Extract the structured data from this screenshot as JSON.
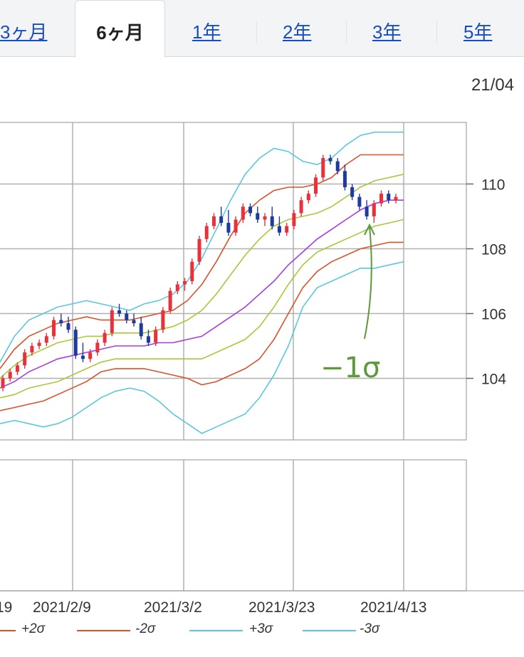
{
  "tabs": [
    {
      "label": "3ヶ月",
      "active": false
    },
    {
      "label": "6ヶ月",
      "active": true
    },
    {
      "label": "1年",
      "active": false
    },
    {
      "label": "2年",
      "active": false
    },
    {
      "label": "3年",
      "active": false
    },
    {
      "label": "5年",
      "active": false
    }
  ],
  "date_label": "21/04",
  "annotation": "−1σ",
  "legend": [
    {
      "label": "+2σ",
      "color": "#d9522b"
    },
    {
      "label": "-2σ",
      "color": "#d9522b"
    },
    {
      "label": "+3σ",
      "color": "#5bc8dc"
    },
    {
      "label": "-3σ",
      "color": "#5bc8dc"
    }
  ],
  "colors": {
    "up": "#e8313b",
    "down": "#1f3a9e",
    "ma": "#a33ee0",
    "sigma1": "#a8c83a",
    "sigma2": "#d9522b",
    "sigma3": "#5bc8dc",
    "annotation": "#5c9a3a"
  },
  "chart_data": {
    "type": "candlestick",
    "x_tick_labels": [
      "19",
      "2021/2/9",
      "2021/3/2",
      "2021/3/23",
      "2021/4/13"
    ],
    "y_tick_labels": [
      "110",
      "108",
      "106",
      "104"
    ],
    "ylim": [
      102.1,
      111.9
    ],
    "candles": [
      [
        103.7,
        104.1,
        103.6,
        104.0
      ],
      [
        104.0,
        104.3,
        103.9,
        104.2
      ],
      [
        104.2,
        104.5,
        104.1,
        104.4
      ],
      [
        104.4,
        104.9,
        104.3,
        104.8
      ],
      [
        104.8,
        105.1,
        104.7,
        105.0
      ],
      [
        105.0,
        105.2,
        104.9,
        105.1
      ],
      [
        105.1,
        105.4,
        105.0,
        105.3
      ],
      [
        105.3,
        105.9,
        105.2,
        105.8
      ],
      [
        105.8,
        106.0,
        105.6,
        105.7
      ],
      [
        105.7,
        105.9,
        105.4,
        105.5
      ],
      [
        105.5,
        105.6,
        104.6,
        104.7
      ],
      [
        104.7,
        105.1,
        104.5,
        104.6
      ],
      [
        104.6,
        104.9,
        104.5,
        104.8
      ],
      [
        104.8,
        105.2,
        104.7,
        105.1
      ],
      [
        105.1,
        105.5,
        105.0,
        105.4
      ],
      [
        105.4,
        106.2,
        105.3,
        106.1
      ],
      [
        106.1,
        106.3,
        105.9,
        106.0
      ],
      [
        106.0,
        106.1,
        105.7,
        105.8
      ],
      [
        105.8,
        106.0,
        105.6,
        105.7
      ],
      [
        105.7,
        105.9,
        105.2,
        105.3
      ],
      [
        105.3,
        105.5,
        105.0,
        105.1
      ],
      [
        105.1,
        105.6,
        105.0,
        105.5
      ],
      [
        105.5,
        106.2,
        105.4,
        106.1
      ],
      [
        106.1,
        106.8,
        106.0,
        106.7
      ],
      [
        106.7,
        107.0,
        106.6,
        106.9
      ],
      [
        106.9,
        107.1,
        106.7,
        107.0
      ],
      [
        107.0,
        107.7,
        106.9,
        107.6
      ],
      [
        107.6,
        108.4,
        107.5,
        108.3
      ],
      [
        108.3,
        108.8,
        108.2,
        108.7
      ],
      [
        108.7,
        109.1,
        108.6,
        109.0
      ],
      [
        109.0,
        109.3,
        108.7,
        108.8
      ],
      [
        108.8,
        109.2,
        108.4,
        108.5
      ],
      [
        108.5,
        109.0,
        108.4,
        108.9
      ],
      [
        108.9,
        109.4,
        108.8,
        109.3
      ],
      [
        109.3,
        109.4,
        109.0,
        109.1
      ],
      [
        109.1,
        109.3,
        108.8,
        108.9
      ],
      [
        108.9,
        109.1,
        108.7,
        109.0
      ],
      [
        109.0,
        109.3,
        108.6,
        108.7
      ],
      [
        108.7,
        109.0,
        108.4,
        108.5
      ],
      [
        108.5,
        108.8,
        108.4,
        108.7
      ],
      [
        108.7,
        109.2,
        108.6,
        109.1
      ],
      [
        109.1,
        109.6,
        109.0,
        109.5
      ],
      [
        109.5,
        109.8,
        109.4,
        109.7
      ],
      [
        109.7,
        110.3,
        109.6,
        110.2
      ],
      [
        110.2,
        110.9,
        110.1,
        110.8
      ],
      [
        110.8,
        110.9,
        110.6,
        110.7
      ],
      [
        110.7,
        110.8,
        110.3,
        110.4
      ],
      [
        110.4,
        110.6,
        109.8,
        109.9
      ],
      [
        109.9,
        110.0,
        109.5,
        109.6
      ],
      [
        109.6,
        109.7,
        109.2,
        109.3
      ],
      [
        109.3,
        109.5,
        108.9,
        109.0
      ],
      [
        109.0,
        109.5,
        108.8,
        109.4
      ],
      [
        109.4,
        109.8,
        109.3,
        109.7
      ],
      [
        109.7,
        109.8,
        109.4,
        109.5
      ],
      [
        109.5,
        109.7,
        109.4,
        109.6
      ]
    ],
    "bands": {
      "ma": [
        103.7,
        103.9,
        104.2,
        104.4,
        104.6,
        104.7,
        104.8,
        104.9,
        105.0,
        105.0,
        105.0,
        105.1,
        105.1,
        105.2,
        105.3,
        105.6,
        105.9,
        106.2,
        106.6,
        107.0,
        107.5,
        107.9,
        108.3,
        108.6,
        108.9,
        109.2,
        109.4,
        109.5,
        109.5
      ],
      "p1": [
        104.0,
        104.4,
        104.7,
        104.9,
        105.1,
        105.2,
        105.3,
        105.3,
        105.4,
        105.4,
        105.4,
        105.5,
        105.6,
        105.8,
        106.1,
        106.6,
        107.2,
        107.8,
        108.3,
        108.7,
        108.9,
        109.0,
        109.1,
        109.3,
        109.6,
        109.9,
        110.1,
        110.2,
        110.3
      ],
      "p2": [
        104.3,
        104.9,
        105.3,
        105.5,
        105.7,
        105.8,
        105.9,
        105.8,
        105.8,
        105.8,
        105.9,
        106.0,
        106.1,
        106.4,
        106.9,
        107.6,
        108.4,
        109.1,
        109.5,
        109.8,
        109.9,
        109.9,
        110.0,
        110.2,
        110.6,
        110.9,
        110.9,
        110.9,
        110.9
      ],
      "p3": [
        104.5,
        105.3,
        105.8,
        106.0,
        106.2,
        106.3,
        106.4,
        106.3,
        106.2,
        106.1,
        106.3,
        106.4,
        106.6,
        107.0,
        107.7,
        108.6,
        109.5,
        110.3,
        110.8,
        111.1,
        111.0,
        110.7,
        110.6,
        110.8,
        111.2,
        111.5,
        111.6,
        111.6,
        111.6
      ],
      "m1": [
        103.4,
        103.5,
        103.7,
        103.8,
        103.9,
        104.1,
        104.3,
        104.5,
        104.6,
        104.6,
        104.6,
        104.6,
        104.6,
        104.6,
        104.6,
        104.8,
        105.0,
        105.2,
        105.6,
        106.2,
        106.9,
        107.5,
        107.9,
        108.1,
        108.3,
        108.5,
        108.7,
        108.8,
        108.9
      ],
      "m2": [
        103.0,
        103.1,
        103.2,
        103.3,
        103.5,
        103.7,
        103.9,
        104.2,
        104.3,
        104.3,
        104.3,
        104.2,
        104.1,
        104.0,
        103.8,
        103.9,
        104.1,
        104.3,
        104.6,
        105.2,
        106.0,
        106.8,
        107.3,
        107.6,
        107.8,
        108.0,
        108.1,
        108.2,
        108.2
      ],
      "m3": [
        102.6,
        102.7,
        102.6,
        102.5,
        102.6,
        102.8,
        103.1,
        103.4,
        103.6,
        103.7,
        103.6,
        103.3,
        102.9,
        102.6,
        102.3,
        102.5,
        102.7,
        102.9,
        103.4,
        104.1,
        105.0,
        106.2,
        106.8,
        107.0,
        107.2,
        107.4,
        107.4,
        107.5,
        107.6
      ]
    }
  }
}
